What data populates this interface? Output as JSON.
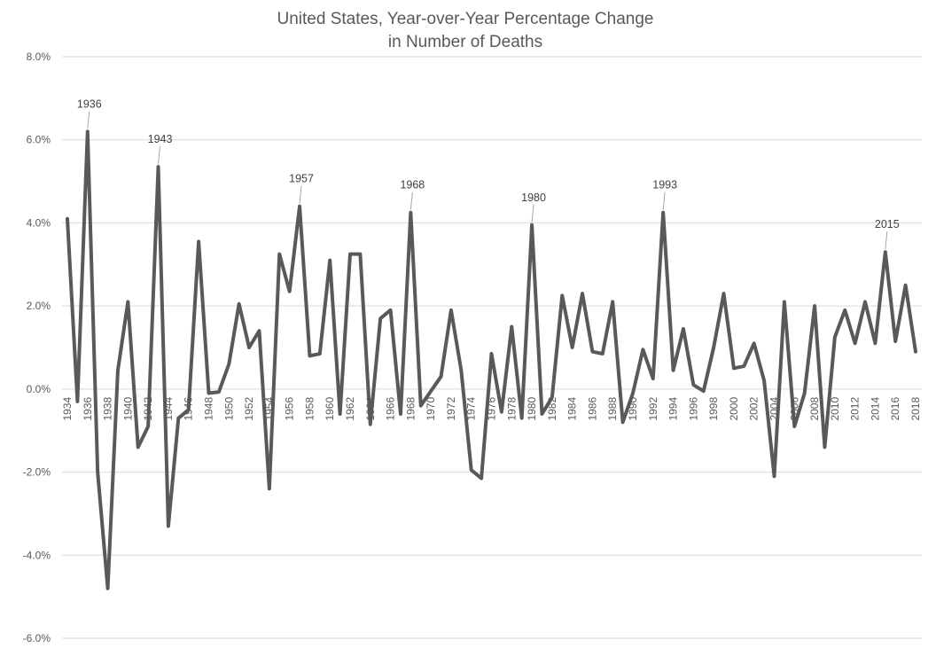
{
  "chart_data": {
    "type": "line",
    "title_lines": [
      "United States, Year-over-Year Percentage Change",
      "in Number of Deaths"
    ],
    "xlabel": "",
    "ylabel": "",
    "ylim": [
      -6.0,
      8.0
    ],
    "y_ticks": [
      "8.0%",
      "6.0%",
      "4.0%",
      "2.0%",
      "0.0%",
      "-2.0%",
      "-4.0%",
      "-6.0%"
    ],
    "x_ticks": [
      "1934",
      "1936",
      "1938",
      "1940",
      "1942",
      "1944",
      "1946",
      "1948",
      "1950",
      "1952",
      "1954",
      "1956",
      "1958",
      "1960",
      "1962",
      "1964",
      "1966",
      "1968",
      "1970",
      "1972",
      "1974",
      "1976",
      "1978",
      "1980",
      "1982",
      "1984",
      "1986",
      "1988",
      "1990",
      "1992",
      "1994",
      "1996",
      "1998",
      "2000",
      "2002",
      "2004",
      "2006",
      "2008",
      "2010",
      "2012",
      "2014",
      "2016",
      "2018"
    ],
    "grid": "horizontal",
    "line_color": "#595959",
    "series": [
      {
        "x": [
          1934,
          1935,
          1936,
          1937,
          1938,
          1939,
          1940,
          1941,
          1942,
          1943,
          1944,
          1945,
          1946,
          1947,
          1948,
          1949,
          1950,
          1951,
          1952,
          1953,
          1954,
          1955,
          1956,
          1957,
          1958,
          1959,
          1960,
          1961,
          1962,
          1963,
          1964,
          1965,
          1966,
          1967,
          1968,
          1969,
          1970,
          1971,
          1972,
          1973,
          1974,
          1975,
          1976,
          1977,
          1978,
          1979,
          1980,
          1981,
          1982,
          1983,
          1984,
          1985,
          1986,
          1987,
          1988,
          1989,
          1990,
          1991,
          1992,
          1993,
          1994,
          1995,
          1996,
          1997,
          1998,
          1999,
          2000,
          2001,
          2002,
          2003,
          2004,
          2005,
          2006,
          2007,
          2008,
          2009,
          2010,
          2011,
          2012,
          2013,
          2014,
          2015,
          2016,
          2017,
          2018
        ],
        "values": [
          4.1,
          -0.3,
          6.2,
          -2.0,
          -4.8,
          0.45,
          2.1,
          -1.4,
          -0.9,
          5.35,
          -3.3,
          -0.7,
          -0.5,
          3.55,
          -0.1,
          -0.07,
          0.6,
          2.05,
          1.0,
          1.4,
          -2.4,
          3.25,
          2.35,
          4.4,
          0.8,
          0.85,
          3.1,
          -0.6,
          3.25,
          3.25,
          -0.85,
          1.7,
          1.9,
          -0.6,
          4.25,
          -0.4,
          -0.05,
          0.3,
          1.9,
          0.45,
          -1.95,
          -2.15,
          0.85,
          -0.55,
          1.5,
          -0.7,
          3.95,
          -0.6,
          -0.2,
          2.25,
          1.0,
          2.3,
          0.9,
          0.85,
          2.1,
          -0.8,
          -0.1,
          0.95,
          0.25,
          4.25,
          0.45,
          1.45,
          0.1,
          -0.05,
          1.0,
          2.3,
          0.5,
          0.55,
          1.1,
          0.2,
          -2.1,
          2.1,
          -0.9,
          -0.1,
          2.0,
          -1.4,
          1.25,
          1.9,
          1.1,
          2.1,
          1.1,
          3.3,
          1.15,
          2.5,
          0.9
        ]
      }
    ],
    "annotations": [
      {
        "label": "1936",
        "x": 1936,
        "y": 6.2
      },
      {
        "label": "1943",
        "x": 1943,
        "y": 5.35
      },
      {
        "label": "1957",
        "x": 1957,
        "y": 4.4
      },
      {
        "label": "1968",
        "x": 1968,
        "y": 4.25
      },
      {
        "label": "1980",
        "x": 1980,
        "y": 3.95
      },
      {
        "label": "1993",
        "x": 1993,
        "y": 4.25
      },
      {
        "label": "2015",
        "x": 2015,
        "y": 3.3
      }
    ]
  }
}
